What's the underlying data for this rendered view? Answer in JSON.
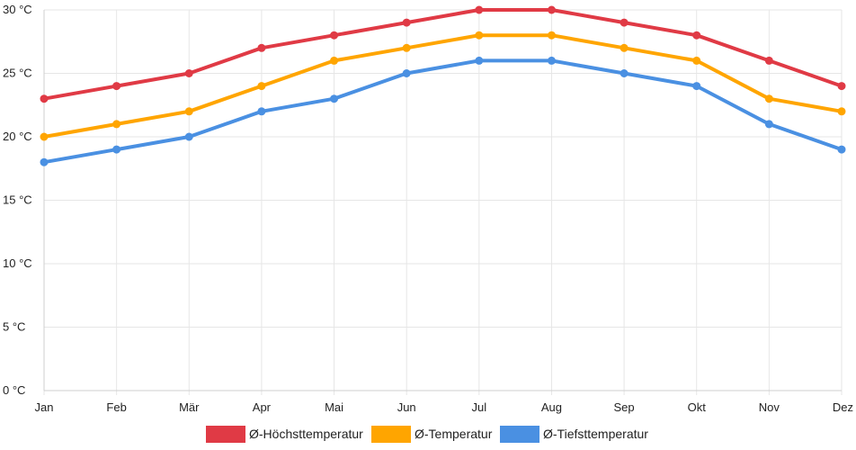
{
  "chart_data": {
    "type": "line",
    "title": "",
    "xlabel": "",
    "ylabel": "",
    "categories": [
      "Jan",
      "Feb",
      "Mär",
      "Apr",
      "Mai",
      "Jun",
      "Jul",
      "Aug",
      "Sep",
      "Okt",
      "Nov",
      "Dez"
    ],
    "y_ticks": [
      0,
      5,
      10,
      15,
      20,
      25,
      30
    ],
    "y_unit": " °C",
    "ylim": [
      0,
      30
    ],
    "grid": true,
    "legend_position": "bottom-center",
    "series": [
      {
        "name": "Ø-Höchsttemperatur",
        "color": "#e03a45",
        "values": [
          23,
          24,
          25,
          27,
          28,
          29,
          30,
          30,
          29,
          28,
          26,
          24
        ]
      },
      {
        "name": "Ø-Temperatur",
        "color": "#ffa500",
        "values": [
          20,
          21,
          22,
          24,
          26,
          27,
          28,
          28,
          27,
          26,
          23,
          22
        ]
      },
      {
        "name": "Ø-Tiefsttemperatur",
        "color": "#4a90e2",
        "values": [
          18,
          19,
          20,
          22,
          23,
          25,
          26,
          26,
          25,
          24,
          21,
          19
        ]
      }
    ]
  }
}
